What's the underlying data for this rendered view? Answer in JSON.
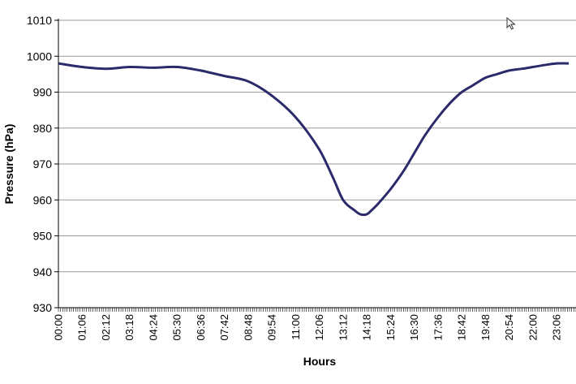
{
  "chart_data": {
    "type": "line",
    "title": "",
    "xlabel": "Hours",
    "ylabel": "Pressure (hPa)",
    "ylim": [
      930,
      1010
    ],
    "yticks": [
      930,
      940,
      950,
      960,
      970,
      980,
      990,
      1000,
      1010
    ],
    "xticks": [
      "00:00",
      "01:06",
      "02:12",
      "03:18",
      "04:24",
      "05:30",
      "06:36",
      "07:42",
      "08:48",
      "09:54",
      "11:00",
      "12:06",
      "13:12",
      "14:18",
      "15:24",
      "16:30",
      "17:36",
      "18:42",
      "19:48",
      "20:54",
      "22:00",
      "23:06"
    ],
    "grid": true,
    "series_color": "#2b2a6b",
    "x": [
      "00:00",
      "01:06",
      "02:12",
      "03:18",
      "04:24",
      "05:30",
      "06:36",
      "07:42",
      "08:48",
      "09:54",
      "11:00",
      "12:06",
      "12:45",
      "13:12",
      "13:45",
      "14:00",
      "14:18",
      "14:30",
      "14:50",
      "15:24",
      "16:00",
      "16:30",
      "17:00",
      "17:36",
      "18:10",
      "18:42",
      "19:15",
      "19:48",
      "20:20",
      "20:54",
      "21:30",
      "22:00",
      "22:30",
      "23:06",
      "23:40"
    ],
    "y": [
      998,
      997,
      996.5,
      997,
      996.8,
      997,
      996,
      994.5,
      993,
      989,
      983,
      974,
      966,
      960,
      957,
      956,
      956,
      957,
      959,
      963,
      968,
      973,
      978,
      983,
      987,
      990,
      992,
      994,
      995,
      996,
      996.5,
      997,
      997.5,
      998,
      998
    ]
  },
  "cursor_icon": "mouse-pointer-icon"
}
